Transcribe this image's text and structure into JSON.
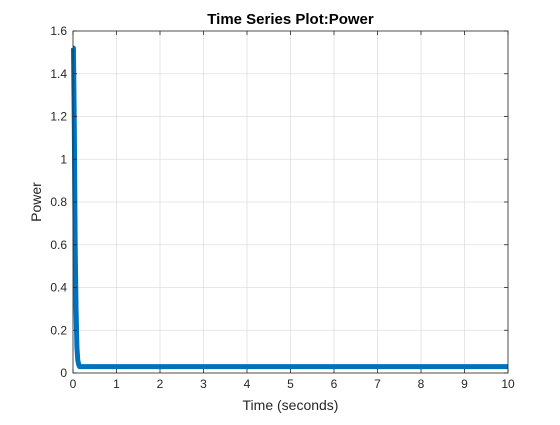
{
  "chart_data": {
    "type": "line",
    "title": "Time Series Plot:Power",
    "xlabel": "Time (seconds)",
    "ylabel": "Power",
    "xlim": [
      0,
      10
    ],
    "ylim": [
      0,
      1.6
    ],
    "xticks": [
      "0",
      "1",
      "2",
      "3",
      "4",
      "5",
      "6",
      "7",
      "8",
      "9",
      "10"
    ],
    "yticks": [
      "0",
      "0.2",
      "0.4",
      "0.6",
      "0.8",
      "1",
      "1.2",
      "1.4",
      "1.6"
    ],
    "grid": true,
    "series": [
      {
        "color": "#0072BD",
        "x": [
          0,
          0.01,
          0.03,
          0.05,
          0.07,
          0.09,
          0.11,
          0.13,
          0.15,
          0.2,
          0.3,
          1,
          2,
          3,
          4,
          5,
          6,
          7,
          8,
          9,
          10
        ],
        "y": [
          1.52,
          1.52,
          1.15,
          0.6,
          0.3,
          0.12,
          0.06,
          0.04,
          0.03,
          0.03,
          0.03,
          0.03,
          0.03,
          0.03,
          0.03,
          0.03,
          0.03,
          0.03,
          0.03,
          0.03,
          0.03
        ]
      }
    ]
  }
}
